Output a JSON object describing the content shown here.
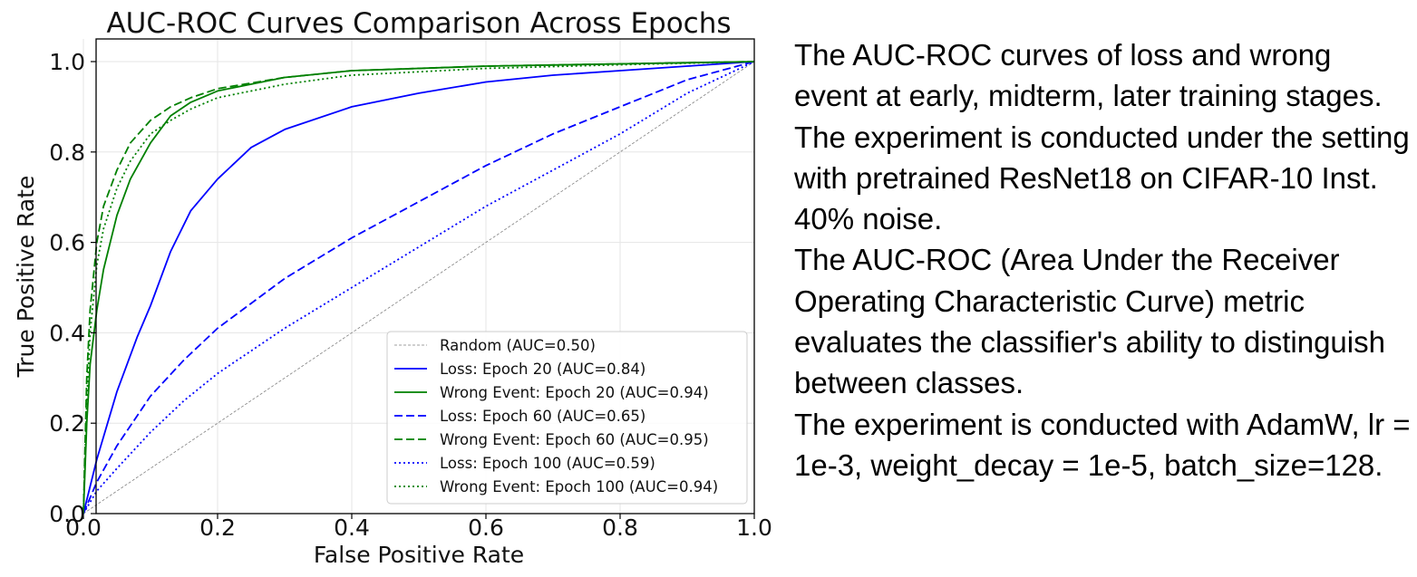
{
  "chart_data": {
    "type": "line",
    "title": "AUC-ROC Curves Comparison Across Epochs",
    "xlabel": "False Positive Rate",
    "ylabel": "True Positive Rate",
    "xlim": [
      0,
      1
    ],
    "ylim": [
      0,
      1.05
    ],
    "x_ticks": [
      "0.0",
      "0.2",
      "0.4",
      "0.6",
      "0.8",
      "1.0"
    ],
    "y_ticks": [
      "0.0",
      "0.2",
      "0.4",
      "0.6",
      "0.8",
      "1.0"
    ],
    "grid": true,
    "legend_position": "lower-right",
    "series": [
      {
        "name": "Random (AUC=0.50)",
        "color": "#808080",
        "style": "dashed-thin",
        "x": [
          0,
          1
        ],
        "y": [
          0,
          1
        ]
      },
      {
        "name": "Loss: Epoch 20 (AUC=0.84)",
        "color": "#0000ff",
        "style": "solid",
        "x": [
          0,
          0.02,
          0.05,
          0.08,
          0.1,
          0.13,
          0.16,
          0.2,
          0.25,
          0.3,
          0.4,
          0.5,
          0.6,
          0.7,
          0.8,
          0.9,
          1.0
        ],
        "y": [
          0,
          0.12,
          0.27,
          0.39,
          0.46,
          0.58,
          0.67,
          0.74,
          0.81,
          0.85,
          0.9,
          0.93,
          0.955,
          0.97,
          0.98,
          0.99,
          1.0
        ]
      },
      {
        "name": "Wrong Event: Epoch 20 (AUC=0.94)",
        "color": "#008000",
        "style": "solid",
        "x": [
          0,
          0.005,
          0.01,
          0.02,
          0.03,
          0.05,
          0.07,
          0.1,
          0.13,
          0.16,
          0.2,
          0.3,
          0.4,
          0.6,
          0.8,
          1.0
        ],
        "y": [
          0,
          0.2,
          0.33,
          0.45,
          0.54,
          0.66,
          0.74,
          0.82,
          0.88,
          0.91,
          0.935,
          0.965,
          0.98,
          0.99,
          0.995,
          1.0
        ]
      },
      {
        "name": "Loss: Epoch 60 (AUC=0.65)",
        "color": "#0000ff",
        "style": "dashed",
        "x": [
          0,
          0.02,
          0.05,
          0.1,
          0.15,
          0.2,
          0.3,
          0.4,
          0.5,
          0.6,
          0.7,
          0.8,
          0.9,
          1.0
        ],
        "y": [
          0,
          0.07,
          0.15,
          0.26,
          0.34,
          0.41,
          0.52,
          0.61,
          0.69,
          0.77,
          0.84,
          0.9,
          0.96,
          1.0
        ]
      },
      {
        "name": "Wrong Event: Epoch 60 (AUC=0.95)",
        "color": "#008000",
        "style": "dashed",
        "x": [
          0,
          0.005,
          0.01,
          0.02,
          0.03,
          0.05,
          0.07,
          0.1,
          0.13,
          0.16,
          0.2,
          0.3,
          0.4,
          0.6,
          0.8,
          1.0
        ],
        "y": [
          0,
          0.3,
          0.45,
          0.6,
          0.68,
          0.76,
          0.82,
          0.87,
          0.9,
          0.92,
          0.94,
          0.965,
          0.98,
          0.99,
          0.995,
          1.0
        ]
      },
      {
        "name": "Loss: Epoch 100 (AUC=0.59)",
        "color": "#0000ff",
        "style": "dotted",
        "x": [
          0,
          0.02,
          0.05,
          0.1,
          0.15,
          0.2,
          0.3,
          0.4,
          0.5,
          0.6,
          0.7,
          0.8,
          0.9,
          1.0
        ],
        "y": [
          0,
          0.05,
          0.1,
          0.18,
          0.25,
          0.31,
          0.41,
          0.5,
          0.59,
          0.68,
          0.76,
          0.84,
          0.93,
          1.0
        ]
      },
      {
        "name": "Wrong Event: Epoch 100 (AUC=0.94)",
        "color": "#008000",
        "style": "dotted",
        "x": [
          0,
          0.005,
          0.01,
          0.02,
          0.03,
          0.05,
          0.07,
          0.1,
          0.13,
          0.16,
          0.2,
          0.3,
          0.4,
          0.6,
          0.8,
          1.0
        ],
        "y": [
          0,
          0.25,
          0.4,
          0.55,
          0.63,
          0.72,
          0.78,
          0.84,
          0.87,
          0.895,
          0.92,
          0.95,
          0.97,
          0.985,
          0.993,
          1.0
        ]
      }
    ]
  },
  "caption": {
    "paragraphs": [
      "The AUC-ROC curves of loss and wrong event at early, midterm, later training stages.",
      "The experiment is conducted under the setting with pretrained ResNet18 on CIFAR-10 Inst. 40% noise.",
      "The AUC-ROC (Area Under the Receiver Operating Characteristic Curve) metric evaluates the classifier's ability to distinguish between classes.",
      "The experiment is conducted with AdamW, lr = 1e-3, weight_decay = 1e-5, batch_size=128."
    ]
  }
}
